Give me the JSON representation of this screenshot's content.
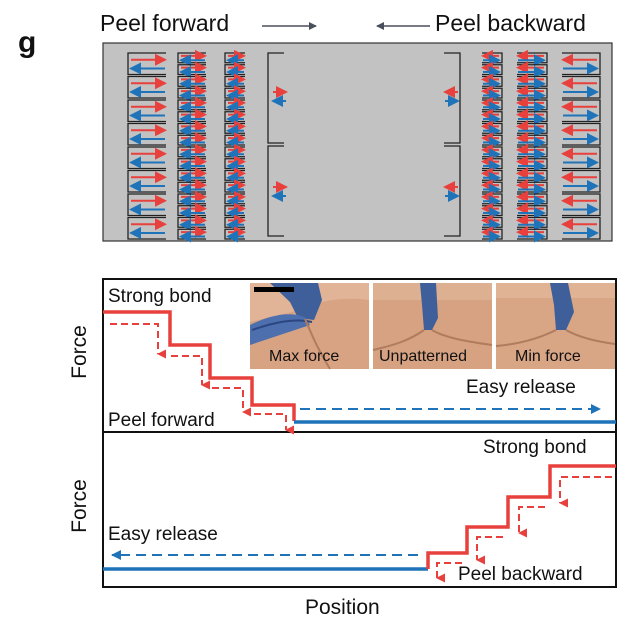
{
  "figure": {
    "panel_label": "g",
    "top": {
      "peel_forward_label": "Peel forward",
      "peel_backward_label": "Peel backward"
    },
    "plot_top": {
      "y_label": "Force",
      "strong_bond_label": "Strong bond",
      "easy_release_label": "Easy release",
      "peel_label": "Peel forward"
    },
    "plot_bottom": {
      "y_label": "Force",
      "strong_bond_label": "Strong bond",
      "easy_release_label": "Easy release",
      "peel_label": "Peel backward"
    },
    "x_label": "Position",
    "photos": [
      {
        "caption": "Max force"
      },
      {
        "caption": "Unpatterned"
      },
      {
        "caption": "Min force"
      }
    ],
    "colors": {
      "red": "#e8403d",
      "blue": "#1f74b9",
      "gray": "#c2c2c2",
      "skin": "#d9a685"
    }
  }
}
